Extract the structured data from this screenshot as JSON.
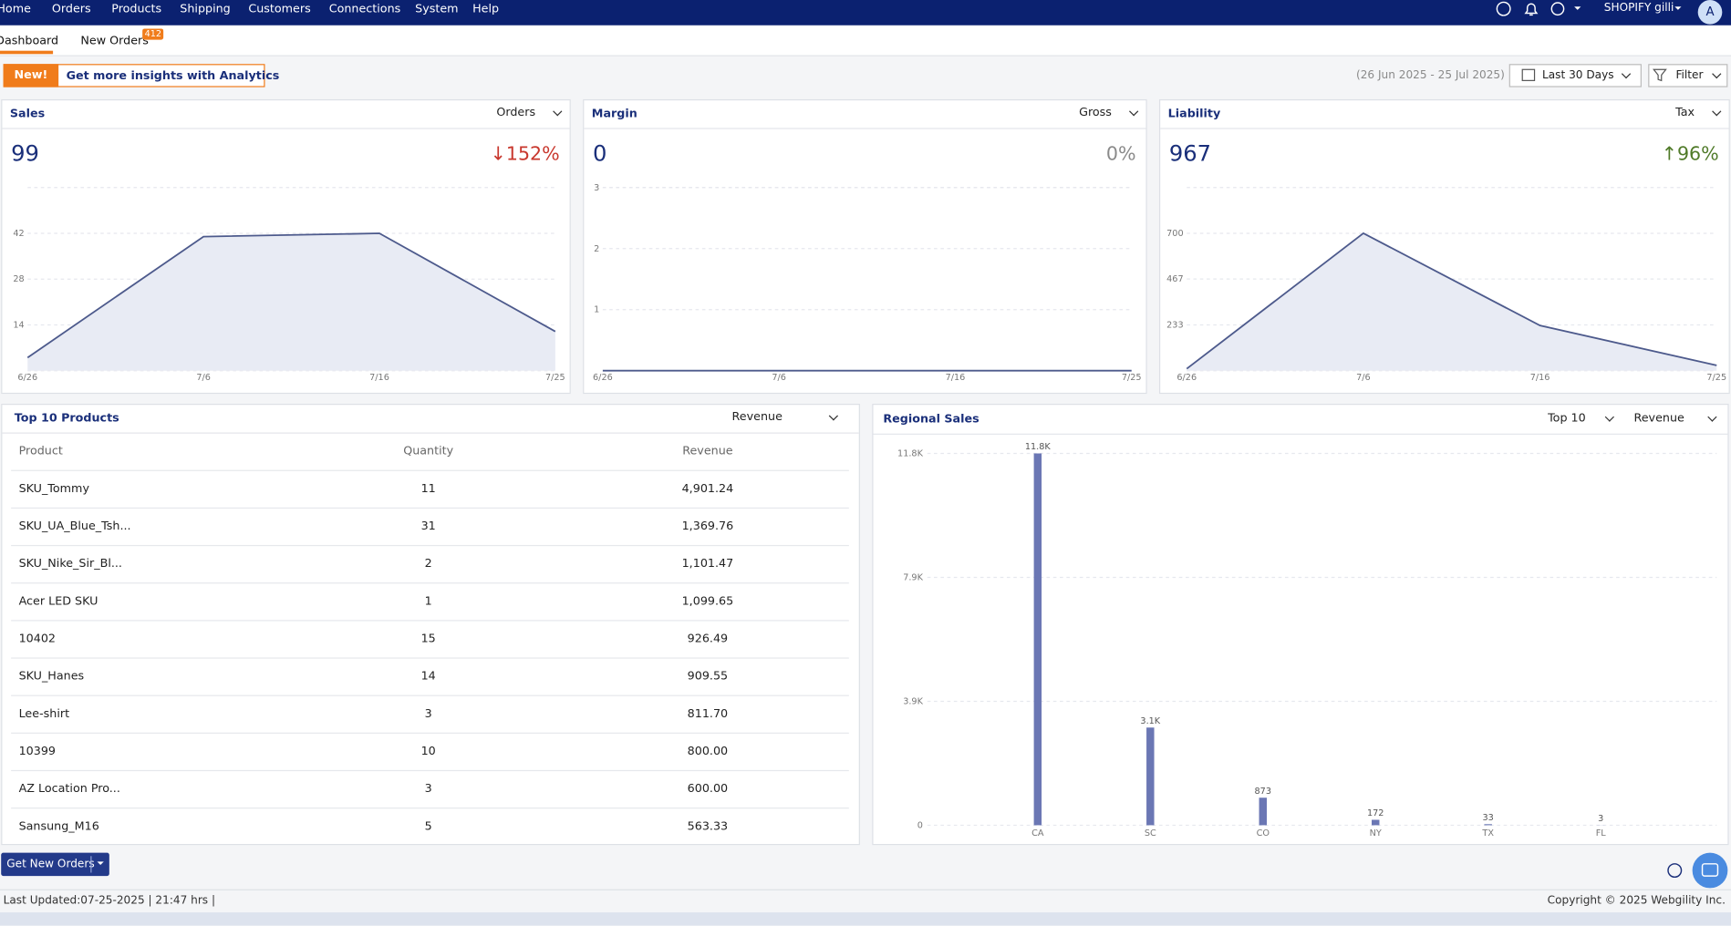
{
  "nav": {
    "items": [
      "Home",
      "Orders",
      "Products",
      "Shipping",
      "Customers",
      "Connections",
      "System",
      "Help"
    ],
    "account": "SHOPIFY gilli",
    "avatar": "A"
  },
  "tabs": [
    {
      "label": "Dashboard"
    },
    {
      "label": "New Orders",
      "badge": 412
    }
  ],
  "banner": {
    "tag": "New!",
    "text": "Get more insights with Analytics"
  },
  "date_range": "(26 Jun 2025 - 25 Jul 2025)",
  "period": "Last 30 Days",
  "filter": "Filter",
  "chart_data": [
    {
      "type": "line",
      "title": "Sales",
      "selector": "Orders",
      "total": 99,
      "change": "↓152%",
      "change_color": "#c8372d",
      "categories": [
        "6/26",
        "7/6",
        "7/16",
        "7/25"
      ],
      "values": [
        4,
        41,
        42,
        12
      ],
      "color": "#4d5a8c",
      "fill": "#e8ebf4",
      "ylim": [
        0,
        56
      ],
      "yticks": [
        14,
        28,
        42
      ],
      "grid": true
    },
    {
      "type": "line",
      "title": "Margin",
      "selector": "Gross",
      "total": 0,
      "change": "0%",
      "change_color": "#8a8a8a",
      "categories": [
        "6/26",
        "7/6",
        "7/16",
        "7/25"
      ],
      "values": [
        0,
        0,
        0,
        0
      ],
      "color": "#4d5a8c",
      "fill": "#e8ebf4",
      "ylim": [
        0,
        3
      ],
      "yticks": [
        1,
        2,
        3
      ],
      "grid": true
    },
    {
      "type": "line",
      "title": "Liability",
      "selector": "Tax",
      "total": 967,
      "change": "↑96%",
      "change_color": "#4f7a28",
      "categories": [
        "6/26",
        "7/6",
        "7/16",
        "7/25"
      ],
      "values": [
        10,
        700,
        230,
        27
      ],
      "color": "#4d5a8c",
      "fill": "#e8ebf4",
      "ylim": [
        0,
        933
      ],
      "yticks": [
        233,
        467,
        700
      ],
      "grid": true
    },
    {
      "type": "bar",
      "title": "Regional Sales",
      "selectors": [
        "Top 10",
        "Revenue"
      ],
      "categories": [
        "CA",
        "SC",
        "CO",
        "NY",
        "TX",
        "FL"
      ],
      "values": [
        11800,
        3100,
        873,
        172,
        33,
        3
      ],
      "value_labels": [
        "11.8K",
        "3.1K",
        "873",
        "172",
        "33",
        "3"
      ],
      "color": "#6b77b4",
      "ylim": [
        0,
        11800
      ],
      "yticks": [
        0,
        {
          "value": 3933,
          "label": "3.9K"
        },
        {
          "value": 7867,
          "label": "7.9K"
        },
        {
          "value": 11800,
          "label": "11.8K"
        }
      ],
      "grid": true
    }
  ],
  "top_products": {
    "title": "Top 10 Products",
    "selector": "Revenue",
    "columns": [
      "Product",
      "Quantity",
      "Revenue"
    ],
    "rows": [
      [
        "SKU_Tommy",
        11,
        "4,901.24"
      ],
      [
        "SKU_UA_Blue_Tsh...",
        31,
        "1,369.76"
      ],
      [
        "SKU_Nike_Sir_Bl...",
        2,
        "1,101.47"
      ],
      [
        "Acer LED SKU",
        1,
        "1,099.65"
      ],
      [
        "10402",
        15,
        "926.49"
      ],
      [
        "SKU_Hanes",
        14,
        "909.55"
      ],
      [
        "Lee-shirt",
        3,
        "811.70"
      ],
      [
        "10399",
        10,
        "800.00"
      ],
      [
        "AZ Location Pro...",
        3,
        "600.00"
      ],
      [
        "Sansung_M16",
        5,
        "563.33"
      ]
    ]
  },
  "actions": {
    "get_orders": "Get New Orders"
  },
  "footer": {
    "last_updated": "Last Updated:07-25-2025 | 21:47 hrs |",
    "copyright": "Copyright © 2025 Webgility Inc."
  }
}
